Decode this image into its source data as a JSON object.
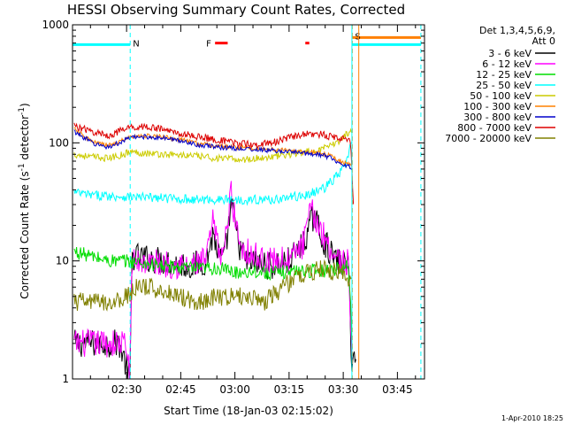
{
  "chart_data": {
    "type": "line",
    "title": "HESSI Observing Summary Count Rates, Corrected",
    "xlabel": "Start Time (18-Jan-03 02:15:02)",
    "ylabel_prefix": "Corrected Count Rate (s",
    "ylabel_sup1": "-1",
    "ylabel_mid": " detector",
    "ylabel_sup2": "-1",
    "ylabel_suffix": ")",
    "yscale": "log",
    "ylim": [
      1,
      1000
    ],
    "xlim": [
      "02:15:02",
      "03:52:30"
    ],
    "xlim_min": [
      15.03,
      112.5
    ],
    "x_ticks": [
      {
        "label": "02:30",
        "min": 30
      },
      {
        "label": "02:45",
        "min": 45
      },
      {
        "label": "03:00",
        "min": 60
      },
      {
        "label": "03:15",
        "min": 75
      },
      {
        "label": "03:30",
        "min": 90
      },
      {
        "label": "03:45",
        "min": 105
      }
    ],
    "y_ticks": [
      {
        "label": "1",
        "value": 1
      },
      {
        "label": "10",
        "value": 10
      },
      {
        "label": "100",
        "value": 100
      },
      {
        "label": "1000",
        "value": 1000
      }
    ],
    "legend_header": [
      "Det 1,3,4,5,6,9,",
      "Att 0"
    ],
    "legend_position": "top-right",
    "series": [
      {
        "name": "3 - 6 keV",
        "color": "#000000",
        "noise": 0.12,
        "points": [
          [
            15.5,
            2
          ],
          [
            28,
            2
          ],
          [
            31,
            1
          ],
          [
            31.5,
            11
          ],
          [
            40,
            10
          ],
          [
            48,
            9
          ],
          [
            52,
            10
          ],
          [
            54,
            17
          ],
          [
            55.5,
            11
          ],
          [
            57,
            10
          ],
          [
            59,
            30
          ],
          [
            61,
            14
          ],
          [
            63,
            10
          ],
          [
            70,
            9
          ],
          [
            75,
            10
          ],
          [
            79,
            14
          ],
          [
            82,
            25
          ],
          [
            84,
            16
          ],
          [
            87,
            11
          ],
          [
            89,
            9.5
          ],
          [
            91.5,
            9
          ],
          [
            92.3,
            1.5
          ],
          [
            93.5,
            1.5
          ]
        ]
      },
      {
        "name": "6 - 12 keV",
        "color": "#ff00ff",
        "noise": 0.12,
        "points": [
          [
            15.5,
            2
          ],
          [
            20,
            2
          ],
          [
            25,
            2
          ],
          [
            29.5,
            2
          ],
          [
            31,
            1.2
          ],
          [
            31.5,
            10
          ],
          [
            40,
            9.5
          ],
          [
            48,
            9
          ],
          [
            52,
            10
          ],
          [
            54,
            22
          ],
          [
            55.5,
            12
          ],
          [
            57,
            12
          ],
          [
            59,
            40
          ],
          [
            60,
            22
          ],
          [
            62,
            13
          ],
          [
            68,
            10
          ],
          [
            75,
            10
          ],
          [
            79,
            14
          ],
          [
            81,
            27
          ],
          [
            84,
            18
          ],
          [
            87,
            12
          ],
          [
            89,
            10
          ],
          [
            91.5,
            9.5
          ],
          [
            92.5,
            1.3
          ]
        ]
      },
      {
        "name": "12 - 25 keV",
        "color": "#00dd00",
        "noise": 0.06,
        "points": [
          [
            15.5,
            12
          ],
          [
            25,
            10
          ],
          [
            30,
            10
          ],
          [
            40,
            9
          ],
          [
            50,
            8.5
          ],
          [
            55,
            8.7
          ],
          [
            60,
            8
          ],
          [
            65,
            8.2
          ],
          [
            70,
            7.8
          ],
          [
            75,
            8.2
          ],
          [
            85,
            8.3
          ],
          [
            91.5,
            9
          ],
          [
            92.5,
            2
          ]
        ]
      },
      {
        "name": "25 - 50 keV",
        "color": "#00ffff",
        "noise": 0.04,
        "points": [
          [
            15.5,
            38
          ],
          [
            20,
            36
          ],
          [
            30,
            35
          ],
          [
            40,
            34
          ],
          [
            50,
            33
          ],
          [
            60,
            33
          ],
          [
            70,
            33
          ],
          [
            80,
            36
          ],
          [
            85,
            42
          ],
          [
            89,
            55
          ],
          [
            91,
            70
          ],
          [
            92.3,
            100
          ]
        ]
      },
      {
        "name": "50 - 100 keV",
        "color": "#cccc00",
        "noise": 0.03,
        "points": [
          [
            15.5,
            80
          ],
          [
            20,
            76
          ],
          [
            25,
            74
          ],
          [
            28,
            78
          ],
          [
            31,
            84
          ],
          [
            35,
            82
          ],
          [
            40,
            80
          ],
          [
            48,
            78
          ],
          [
            55,
            74
          ],
          [
            62,
            72
          ],
          [
            70,
            76
          ],
          [
            78,
            82
          ],
          [
            82,
            85
          ],
          [
            86,
            92
          ],
          [
            89,
            105
          ],
          [
            92.3,
            130
          ]
        ]
      },
      {
        "name": "100 - 300 keV",
        "color": "#ff8000",
        "noise": 0.02,
        "points": [
          [
            15.5,
            130
          ],
          [
            18,
            115
          ],
          [
            21,
            100
          ],
          [
            25,
            95
          ],
          [
            28,
            102
          ],
          [
            31,
            112
          ],
          [
            35,
            115
          ],
          [
            40,
            112
          ],
          [
            46,
            105
          ],
          [
            50,
            98
          ],
          [
            55,
            94
          ],
          [
            60,
            92
          ],
          [
            65,
            90
          ],
          [
            70,
            88
          ],
          [
            75,
            86
          ],
          [
            79,
            84
          ],
          [
            83,
            82
          ],
          [
            86,
            78
          ],
          [
            89,
            70
          ],
          [
            92.3,
            65
          ]
        ]
      },
      {
        "name": "300 - 800 keV",
        "color": "#0000cc",
        "noise": 0.02,
        "points": [
          [
            15.5,
            125
          ],
          [
            18,
            112
          ],
          [
            21,
            98
          ],
          [
            25,
            92
          ],
          [
            28,
            100
          ],
          [
            31,
            110
          ],
          [
            35,
            113
          ],
          [
            40,
            110
          ],
          [
            46,
            103
          ],
          [
            50,
            96
          ],
          [
            55,
            92
          ],
          [
            60,
            90
          ],
          [
            65,
            88
          ],
          [
            70,
            86
          ],
          [
            75,
            84
          ],
          [
            79,
            82
          ],
          [
            83,
            80
          ],
          [
            86,
            76
          ],
          [
            89,
            68
          ],
          [
            92.3,
            62
          ]
        ]
      },
      {
        "name": "800 - 7000 keV",
        "color": "#dd0000",
        "noise": 0.03,
        "points": [
          [
            15.5,
            140
          ],
          [
            20,
            125
          ],
          [
            25,
            115
          ],
          [
            28,
            125
          ],
          [
            31,
            135
          ],
          [
            35,
            138
          ],
          [
            40,
            130
          ],
          [
            46,
            118
          ],
          [
            52,
            110
          ],
          [
            58,
            102
          ],
          [
            62,
            98
          ],
          [
            67,
            97
          ],
          [
            72,
            103
          ],
          [
            77,
            115
          ],
          [
            80,
            120
          ],
          [
            84,
            118
          ],
          [
            88,
            110
          ],
          [
            92,
            108
          ],
          [
            92.8,
            30
          ]
        ]
      },
      {
        "name": "7000 - 20000 keV",
        "color": "#808000",
        "noise": 0.08,
        "points": [
          [
            15.5,
            4.5
          ],
          [
            22,
            4.5
          ],
          [
            27,
            4.5
          ],
          [
            30,
            5
          ],
          [
            33,
            6
          ],
          [
            36,
            6
          ],
          [
            41,
            5.5
          ],
          [
            45,
            5
          ],
          [
            50,
            4.5
          ],
          [
            55,
            5
          ],
          [
            60,
            5
          ],
          [
            65,
            5
          ],
          [
            68,
            4.5
          ],
          [
            72,
            5.5
          ],
          [
            76,
            7
          ],
          [
            80,
            8
          ],
          [
            84,
            8.5
          ],
          [
            88,
            8
          ],
          [
            91,
            7.5
          ],
          [
            92.3,
            6
          ]
        ]
      }
    ],
    "flag_lines": [
      {
        "label": "N",
        "color": "#00ffff",
        "line": [
          [
            15.03,
            680
          ],
          [
            31.0,
            680
          ]
        ],
        "boundary_min": 31.0
      },
      {
        "label": "S",
        "color": "#ff8000",
        "line": [
          [
            92.5,
            780
          ],
          [
            111.5,
            780
          ]
        ],
        "boundary_min": 92.5
      },
      {
        "label": "",
        "color": "#00ffff",
        "line": [
          [
            92.5,
            680
          ],
          [
            111.5,
            680
          ]
        ],
        "boundary_min": 111.5
      }
    ],
    "flare_markers": {
      "label": "F",
      "color": "#ff0000",
      "level": 700,
      "segments": [
        [
          54.5,
          58.0
        ],
        [
          79.5,
          80.6
        ]
      ]
    },
    "vertical_lines": [
      {
        "min": 92.4,
        "color": "#00ffff",
        "dashed": false
      },
      {
        "min": 94.3,
        "color": "#ff8000",
        "dashed": false
      }
    ]
  },
  "footer": {
    "date_stamp": "1-Apr-2010 18:25"
  }
}
